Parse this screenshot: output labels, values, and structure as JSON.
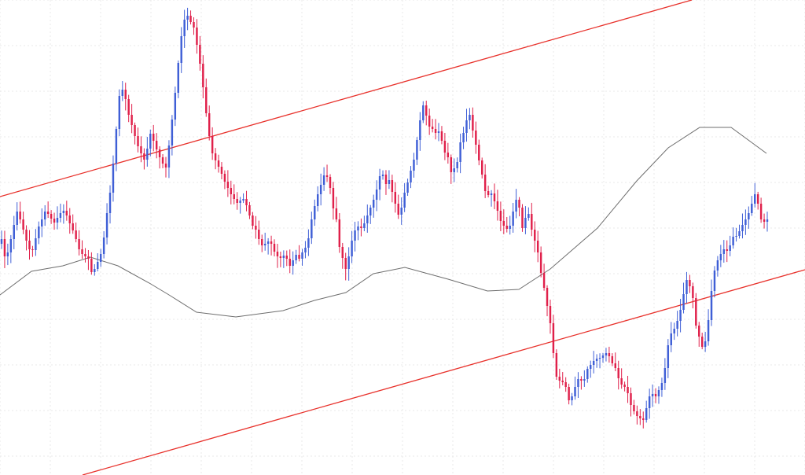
{
  "chart_data": {
    "type": "candlestick",
    "title": "",
    "xlabel": "",
    "ylabel": "",
    "grid": true,
    "legend": "none",
    "colors": {
      "bull": "#3f5fd6",
      "bear": "#e0204a",
      "channel": "#e8312b",
      "moving_average": "#6e6e6e",
      "grid": "#e9e9e9",
      "background": "#ffffff"
    },
    "x_count": 240,
    "ylim": [
      0,
      604
    ],
    "close": [
      300,
      278,
      283,
      300,
      318,
      335,
      325,
      312,
      298,
      287,
      286,
      301,
      316,
      325,
      335,
      332,
      326,
      321,
      327,
      333,
      336,
      330,
      320,
      311,
      300,
      287,
      281,
      278,
      275,
      258,
      262,
      271,
      281,
      302,
      333,
      359,
      396,
      440,
      482,
      490,
      478,
      458,
      445,
      431,
      418,
      409,
      401,
      415,
      434,
      425,
      414,
      404,
      396,
      391,
      419,
      452,
      486,
      524,
      558,
      579,
      584,
      576,
      569,
      547,
      523,
      493,
      460,
      431,
      409,
      400,
      392,
      383,
      373,
      365,
      357,
      351,
      346,
      349,
      351,
      343,
      330,
      317,
      312,
      300,
      292,
      294,
      297,
      294,
      284,
      278,
      276,
      279,
      275,
      266,
      273,
      280,
      275,
      283,
      289,
      301,
      325,
      342,
      357,
      369,
      381,
      379,
      365,
      339,
      325,
      290,
      276,
      262,
      278,
      298,
      311,
      316,
      314,
      320,
      330,
      340,
      350,
      363,
      380,
      382,
      370,
      375,
      360,
      345,
      331,
      340,
      359,
      372,
      387,
      401,
      426,
      451,
      470,
      457,
      443,
      440,
      435,
      437,
      425,
      410,
      404,
      385,
      390,
      398,
      423,
      435,
      451,
      458,
      438,
      420,
      400,
      382,
      361,
      356,
      358,
      348,
      336,
      323,
      317,
      313,
      317,
      335,
      350,
      340,
      314,
      327,
      332,
      312,
      298,
      283,
      257,
      238,
      215,
      193,
      155,
      125,
      120,
      118,
      112,
      95,
      100,
      112,
      122,
      120,
      122,
      135,
      140,
      145,
      148,
      149,
      152,
      155,
      151,
      142,
      136,
      123,
      115,
      112,
      104,
      89,
      81,
      75,
      72,
      70,
      85,
      100,
      103,
      100,
      108,
      117,
      136,
      165,
      180,
      186,
      196,
      210,
      230,
      248,
      240,
      225,
      190,
      176,
      163,
      170,
      197,
      234,
      260,
      273,
      281,
      287,
      285,
      292,
      303,
      304,
      310,
      318,
      325,
      333,
      345,
      357,
      345,
      325,
      322,
      325
    ],
    "moving_average": [
      [
        0,
        375
      ],
      [
        40,
        345
      ],
      [
        80,
        338
      ],
      [
        115,
        327
      ],
      [
        150,
        338
      ],
      [
        190,
        360
      ],
      [
        215,
        375
      ],
      [
        250,
        397
      ],
      [
        300,
        403
      ],
      [
        360,
        395
      ],
      [
        400,
        382
      ],
      [
        440,
        372
      ],
      [
        475,
        348
      ],
      [
        515,
        340
      ],
      [
        570,
        355
      ],
      [
        620,
        370
      ],
      [
        660,
        368
      ],
      [
        700,
        342
      ],
      [
        760,
        290
      ],
      [
        810,
        230
      ],
      [
        850,
        188
      ],
      [
        890,
        162
      ],
      [
        930,
        162
      ],
      [
        975,
        195
      ]
    ]
  }
}
